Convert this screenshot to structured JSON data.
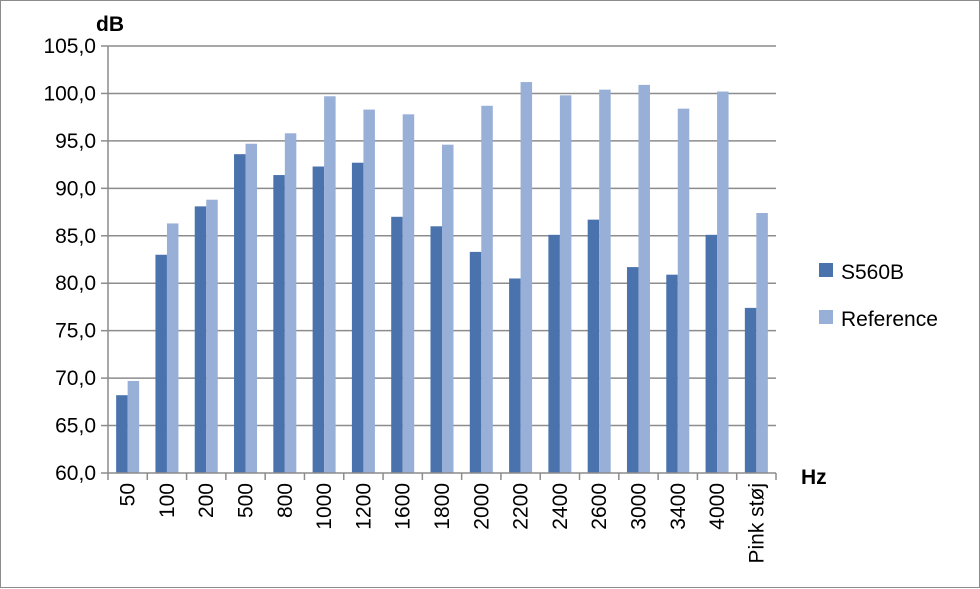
{
  "chart_data": {
    "type": "bar",
    "title": "",
    "ylabel": "dB",
    "xlabel": "Hz",
    "ylim": [
      60,
      105
    ],
    "ystep": 5,
    "grid": true,
    "legend_position": "right",
    "y_tick_labels": [
      "60,0",
      "65,0",
      "70,0",
      "75,0",
      "80,0",
      "85,0",
      "90,0",
      "95,0",
      "100,0",
      "105,0"
    ],
    "categories": [
      "50",
      "100",
      "200",
      "500",
      "800",
      "1000",
      "1200",
      "1600",
      "1800",
      "2000",
      "2200",
      "2400",
      "2600",
      "3000",
      "3400",
      "4000",
      "Pink støj"
    ],
    "series": [
      {
        "name": "S560B",
        "color": "#4a73ad",
        "values": [
          68.2,
          83.0,
          88.1,
          93.6,
          91.4,
          92.3,
          92.7,
          87.0,
          86.0,
          83.3,
          80.5,
          85.1,
          86.7,
          81.7,
          80.9,
          85.1,
          77.4
        ]
      },
      {
        "name": "Reference",
        "color": "#98afd7",
        "values": [
          69.7,
          86.3,
          88.8,
          94.7,
          95.8,
          99.7,
          98.3,
          97.8,
          94.6,
          98.7,
          101.2,
          99.8,
          100.4,
          100.9,
          98.4,
          100.2,
          87.4
        ]
      }
    ]
  }
}
